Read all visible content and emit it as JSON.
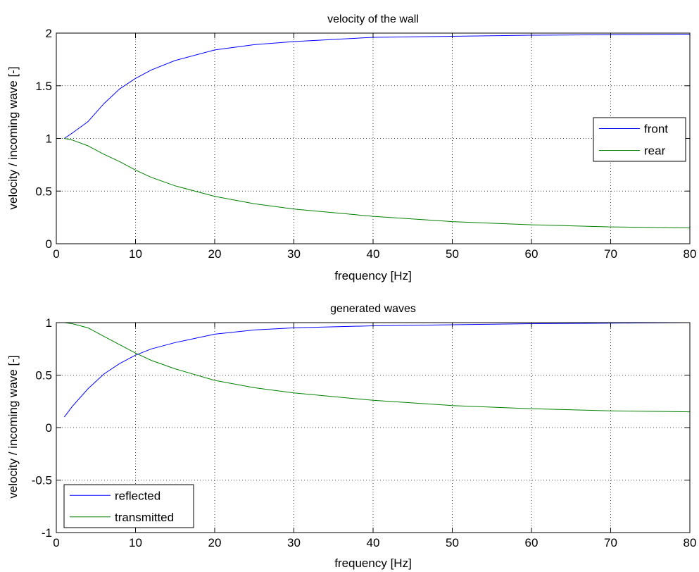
{
  "chart_data": [
    {
      "type": "line",
      "title": "velocity of the wall",
      "xlabel": "frequency [Hz]",
      "ylabel": "velocity / incoming wave [-]",
      "xlim": [
        0,
        80
      ],
      "ylim": [
        0,
        2
      ],
      "xticks": [
        0,
        10,
        20,
        30,
        40,
        50,
        60,
        70,
        80
      ],
      "yticks": [
        0,
        0.5,
        1,
        1.5,
        2
      ],
      "xtick_labels": [
        "0",
        "10",
        "20",
        "30",
        "40",
        "50",
        "60",
        "70",
        "80"
      ],
      "ytick_labels": [
        "0",
        "0.5",
        "1",
        "1.5",
        "2"
      ],
      "grid": true,
      "legend_position": "right",
      "x": [
        1,
        2,
        4,
        6,
        8,
        10,
        12,
        15,
        20,
        25,
        30,
        40,
        50,
        60,
        70,
        80
      ],
      "series": [
        {
          "name": "front",
          "color": "#0000ff",
          "values": [
            1.0,
            1.05,
            1.16,
            1.33,
            1.47,
            1.57,
            1.65,
            1.74,
            1.84,
            1.89,
            1.92,
            1.96,
            1.97,
            1.98,
            1.985,
            1.99
          ]
        },
        {
          "name": "rear",
          "color": "#008000",
          "values": [
            1.0,
            0.985,
            0.93,
            0.85,
            0.78,
            0.7,
            0.63,
            0.55,
            0.45,
            0.38,
            0.33,
            0.26,
            0.21,
            0.18,
            0.16,
            0.15
          ]
        }
      ]
    },
    {
      "type": "line",
      "title": "generated waves",
      "xlabel": "frequency [Hz]",
      "ylabel": "velocity / incoming wave [-]",
      "xlim": [
        0,
        80
      ],
      "ylim": [
        -1,
        1
      ],
      "xticks": [
        0,
        10,
        20,
        30,
        40,
        50,
        60,
        70,
        80
      ],
      "yticks": [
        -1,
        -0.5,
        0,
        0.5,
        1
      ],
      "xtick_labels": [
        "0",
        "10",
        "20",
        "30",
        "40",
        "50",
        "60",
        "70",
        "80"
      ],
      "ytick_labels": [
        "-1",
        "-0.5",
        "0",
        "0.5",
        "1"
      ],
      "grid": true,
      "legend_position": "bottom-left",
      "x": [
        1,
        2,
        4,
        6,
        8,
        10,
        12,
        15,
        20,
        25,
        30,
        40,
        50,
        60,
        70,
        80
      ],
      "series": [
        {
          "name": "reflected",
          "color": "#0000ff",
          "values": [
            0.1,
            0.2,
            0.37,
            0.51,
            0.61,
            0.69,
            0.75,
            0.81,
            0.89,
            0.93,
            0.95,
            0.97,
            0.98,
            0.99,
            0.995,
            1.0
          ]
        },
        {
          "name": "transmitted",
          "color": "#008000",
          "values": [
            1.0,
            0.99,
            0.95,
            0.87,
            0.79,
            0.71,
            0.64,
            0.56,
            0.45,
            0.38,
            0.33,
            0.26,
            0.21,
            0.18,
            0.16,
            0.15
          ]
        }
      ]
    }
  ]
}
